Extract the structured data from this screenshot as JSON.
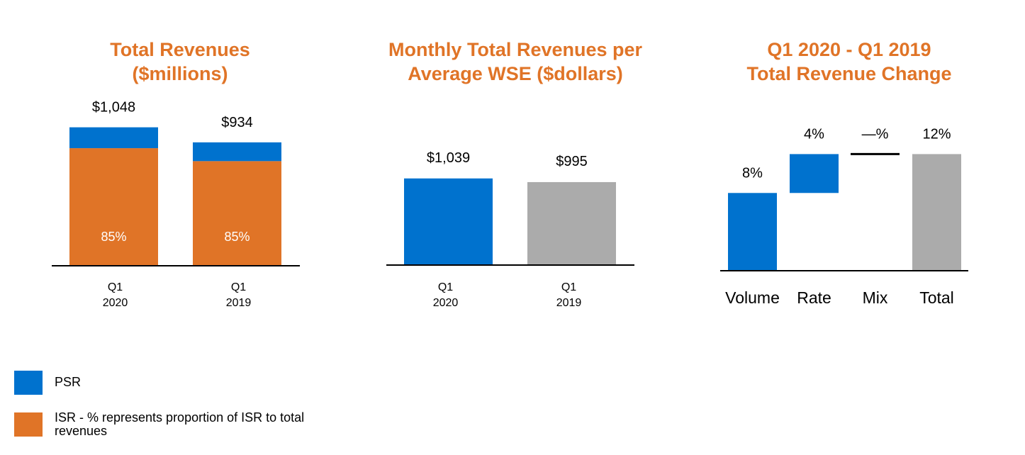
{
  "colors": {
    "psr": "#0072CE",
    "isr": "#E07427",
    "gray": "#ABABAB",
    "title": "#E07427",
    "axis": "#000000"
  },
  "chart_data": [
    {
      "type": "bar",
      "stacked": true,
      "title_lines": [
        "Total Revenues",
        "($millions)"
      ],
      "categories": [
        [
          "Q1",
          "2020"
        ],
        [
          "Q1",
          "2019"
        ]
      ],
      "totals": [
        1048,
        934
      ],
      "total_labels": [
        "$1,048",
        "$934"
      ],
      "series": [
        {
          "name": "ISR",
          "values": [
            890,
            792
          ],
          "labels": [
            "85%",
            "85%"
          ]
        },
        {
          "name": "PSR",
          "values": [
            158,
            142
          ]
        }
      ],
      "ylim": [
        0,
        1180
      ]
    },
    {
      "type": "bar",
      "title_lines": [
        "Monthly Total Revenues per",
        "Average WSE ($dollars)"
      ],
      "categories": [
        [
          "Q1",
          "2020"
        ],
        [
          "Q1",
          "2019"
        ]
      ],
      "values": [
        1039,
        995
      ],
      "value_labels": [
        "$1,039",
        "$995"
      ],
      "ylim": [
        0,
        1700
      ]
    },
    {
      "type": "bar",
      "subtype": "waterfall",
      "title_lines": [
        "Q1 2020 - Q1 2019",
        "Total Revenue Change"
      ],
      "categories": [
        "Volume",
        "Rate",
        "Mix",
        "Total"
      ],
      "values": [
        8,
        4,
        0,
        12
      ],
      "value_labels": [
        "8%",
        "4%",
        "—%",
        "12%"
      ],
      "ylim": [
        0,
        17.5
      ]
    }
  ],
  "legend": [
    {
      "name": "PSR",
      "label": "PSR"
    },
    {
      "name": "ISR",
      "label_lines": [
        "ISR - % represents proportion of ISR to total",
        "revenues"
      ]
    }
  ]
}
